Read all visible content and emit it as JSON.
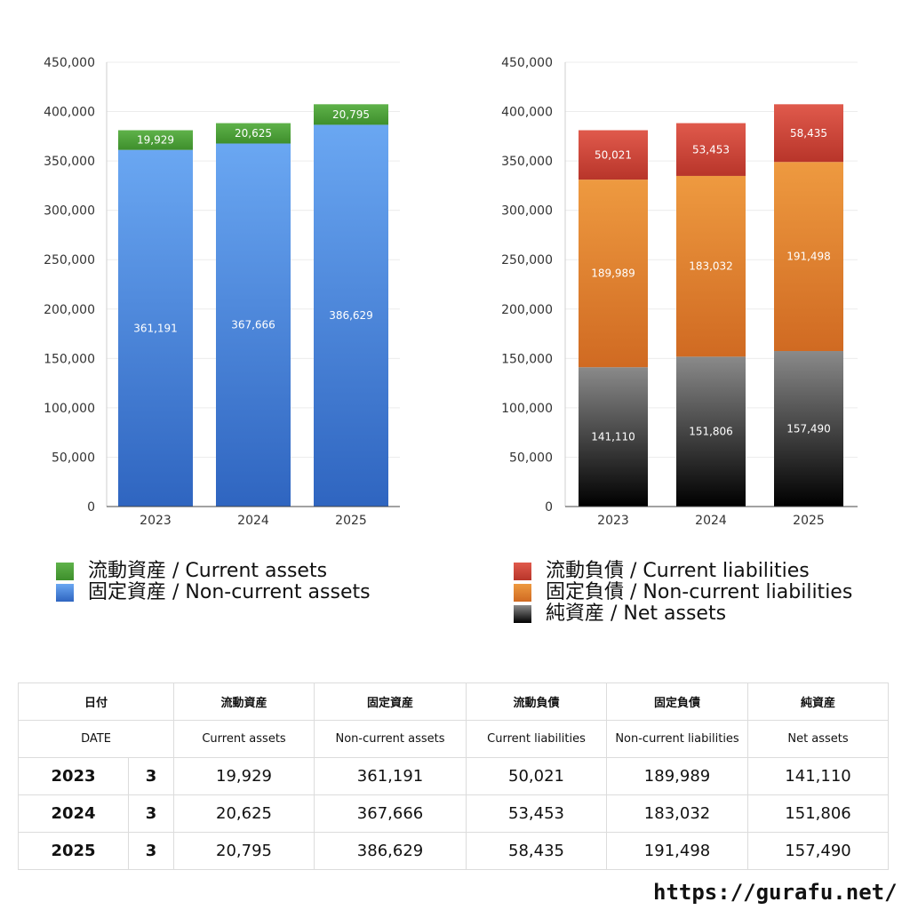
{
  "chart_data": [
    {
      "type": "bar",
      "stacked": true,
      "categories": [
        "2023",
        "2024",
        "2025"
      ],
      "series": [
        {
          "name": "固定資産 / Non-current assets",
          "values": [
            361191,
            367666,
            386629
          ],
          "color_top": "#6aa7f2",
          "color_bottom": "#2f65c0"
        },
        {
          "name": "流動資産 / Current assets",
          "values": [
            19929,
            20625,
            20795
          ],
          "color_top": "#5fb24a",
          "color_bottom": "#3e8f2c"
        }
      ],
      "ylim": [
        0,
        450000
      ],
      "yticks": [
        "0",
        "50,000",
        "100,000",
        "150,000",
        "200,000",
        "250,000",
        "300,000",
        "350,000",
        "400,000",
        "450,000"
      ],
      "grid": true,
      "legend": "bottom"
    },
    {
      "type": "bar",
      "stacked": true,
      "categories": [
        "2023",
        "2024",
        "2025"
      ],
      "series": [
        {
          "name": "純資産 / Net assets",
          "values": [
            141110,
            151806,
            157490
          ],
          "color_top": "#8a8a8a",
          "color_bottom": "#000000"
        },
        {
          "name": "固定負債 / Non-current liabilities",
          "values": [
            189989,
            183032,
            191498
          ],
          "color_top": "#ee9a40",
          "color_bottom": "#d06a22"
        },
        {
          "name": "流動負債 / Current liabilities",
          "values": [
            50021,
            53453,
            58435
          ],
          "color_top": "#e05a4c",
          "color_bottom": "#b8352a"
        }
      ],
      "ylim": [
        0,
        450000
      ],
      "yticks": [
        "0",
        "50,000",
        "100,000",
        "150,000",
        "200,000",
        "250,000",
        "300,000",
        "350,000",
        "400,000",
        "450,000"
      ],
      "grid": true,
      "legend": "bottom"
    }
  ],
  "legend_left": [
    {
      "label": "流動資産 / Current assets",
      "color": "#4ea63a"
    },
    {
      "label": "固定資産 / Non-current assets",
      "color": "#4a86e0"
    }
  ],
  "legend_right": [
    {
      "label": "流動負債 / Current liabilities",
      "color": "#d2473a"
    },
    {
      "label": "固定負債 / Non-current liabilities",
      "color": "#e78a34"
    },
    {
      "label": "純資産 / Net assets",
      "color": "#2a2a2a"
    }
  ],
  "table": {
    "header_jp": [
      "日付",
      "流動資産",
      "固定資産",
      "流動負債",
      "固定負債",
      "純資産"
    ],
    "header_en": [
      "DATE",
      "Current assets",
      "Non-current assets",
      "Current liabilities",
      "Non-current liabilities",
      "Net assets"
    ],
    "rows": [
      {
        "year": "2023",
        "month": "3",
        "cells": [
          "19,929",
          "361,191",
          "50,021",
          "189,989",
          "141,110"
        ]
      },
      {
        "year": "2024",
        "month": "3",
        "cells": [
          "20,625",
          "367,666",
          "53,453",
          "183,032",
          "151,806"
        ]
      },
      {
        "year": "2025",
        "month": "3",
        "cells": [
          "20,795",
          "386,629",
          "58,435",
          "191,498",
          "157,490"
        ]
      }
    ]
  },
  "footer_url": "https://gurafu.net/"
}
